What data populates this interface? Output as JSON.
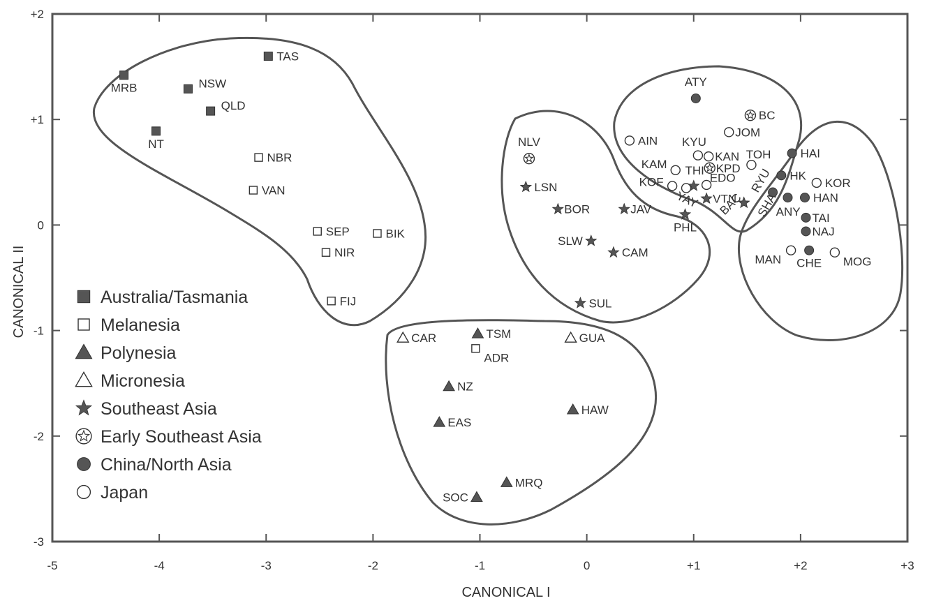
{
  "chart_data": {
    "type": "scatter",
    "title": "",
    "xlabel": "CANONICAL I",
    "ylabel": "CANONICAL II",
    "xlim": [
      -5,
      3
    ],
    "ylim": [
      -3,
      2
    ],
    "grid": false,
    "legend_position": "bottom-left",
    "x_ticks": [
      {
        "value": -5,
        "label": "-5"
      },
      {
        "value": -4,
        "label": "-4"
      },
      {
        "value": -3,
        "label": "-3"
      },
      {
        "value": -2,
        "label": "-2"
      },
      {
        "value": -1,
        "label": "-1"
      },
      {
        "value": 0,
        "label": "0"
      },
      {
        "value": 1,
        "label": "+1"
      },
      {
        "value": 2,
        "label": "+2"
      },
      {
        "value": 3,
        "label": "+3"
      }
    ],
    "y_ticks": [
      {
        "value": 2,
        "label": "+2"
      },
      {
        "value": 1,
        "label": "+1"
      },
      {
        "value": 0,
        "label": "0"
      },
      {
        "value": -1,
        "label": "-1"
      },
      {
        "value": -2,
        "label": "-2"
      },
      {
        "value": -3,
        "label": "-3"
      }
    ],
    "series": [
      {
        "name": "Australia/Tasmania",
        "marker": "square-filled",
        "points": [
          {
            "label": "TAS",
            "x": -2.98,
            "y": 1.6,
            "lpos": "right"
          },
          {
            "label": "MRB",
            "x": -4.33,
            "y": 1.42,
            "lpos": "below"
          },
          {
            "label": "NSW",
            "x": -3.73,
            "y": 1.29,
            "lpos": "right-up"
          },
          {
            "label": "QLD",
            "x": -3.52,
            "y": 1.08,
            "lpos": "right-up"
          },
          {
            "label": "NT",
            "x": -4.03,
            "y": 0.89,
            "lpos": "below"
          }
        ]
      },
      {
        "name": "Melanesia",
        "marker": "square-open",
        "points": [
          {
            "label": "NBR",
            "x": -3.07,
            "y": 0.64,
            "lpos": "right"
          },
          {
            "label": "VAN",
            "x": -3.12,
            "y": 0.33,
            "lpos": "right"
          },
          {
            "label": "SEP",
            "x": -2.52,
            "y": -0.06,
            "lpos": "right"
          },
          {
            "label": "BIK",
            "x": -1.96,
            "y": -0.08,
            "lpos": "right"
          },
          {
            "label": "NIR",
            "x": -2.44,
            "y": -0.26,
            "lpos": "right"
          },
          {
            "label": "FIJ",
            "x": -2.39,
            "y": -0.72,
            "lpos": "right"
          },
          {
            "label": "ADR",
            "x": -1.04,
            "y": -1.17,
            "lpos": "right-down"
          }
        ]
      },
      {
        "name": "Polynesia",
        "marker": "triangle-filled",
        "points": [
          {
            "label": "TSM",
            "x": -1.02,
            "y": -1.03,
            "lpos": "right"
          },
          {
            "label": "NZ",
            "x": -1.29,
            "y": -1.53,
            "lpos": "right"
          },
          {
            "label": "HAW",
            "x": -0.13,
            "y": -1.75,
            "lpos": "right"
          },
          {
            "label": "EAS",
            "x": -1.38,
            "y": -1.87,
            "lpos": "right"
          },
          {
            "label": "MRQ",
            "x": -0.75,
            "y": -2.44,
            "lpos": "right"
          },
          {
            "label": "SOC",
            "x": -1.03,
            "y": -2.58,
            "lpos": "left"
          }
        ]
      },
      {
        "name": "Micronesia",
        "marker": "triangle-open",
        "points": [
          {
            "label": "CAR",
            "x": -1.72,
            "y": -1.07,
            "lpos": "right"
          },
          {
            "label": "GUA",
            "x": -0.15,
            "y": -1.07,
            "lpos": "right"
          }
        ]
      },
      {
        "name": "Southeast Asia",
        "marker": "star-filled",
        "points": [
          {
            "label": "LSN",
            "x": -0.57,
            "y": 0.36,
            "lpos": "right"
          },
          {
            "label": "BOR",
            "x": -0.27,
            "y": 0.15,
            "lpos": "right-tight"
          },
          {
            "label": "JAV",
            "x": 0.35,
            "y": 0.15,
            "lpos": "right-tight"
          },
          {
            "label": "SLW",
            "x": 0.04,
            "y": -0.15,
            "lpos": "left"
          },
          {
            "label": "CAM",
            "x": 0.25,
            "y": -0.26,
            "lpos": "right"
          },
          {
            "label": "SUL",
            "x": -0.06,
            "y": -0.74,
            "lpos": "right"
          },
          {
            "label": "PHL",
            "x": 0.92,
            "y": 0.1,
            "lpos": "below"
          },
          {
            "label": "THI",
            "x": 1.0,
            "y": 0.37,
            "lpos": "none"
          },
          {
            "label": "VTN",
            "x": 1.12,
            "y": 0.25,
            "lpos": "right-tight"
          },
          {
            "label": "BAC",
            "x": 1.47,
            "y": 0.21,
            "lpos": "none"
          },
          {
            "label": "RYU",
            "x": 1.47,
            "y": 0.21,
            "lpos": "none"
          }
        ]
      },
      {
        "name": "Early Southeast Asia",
        "marker": "star-circle",
        "points": [
          {
            "label": "NLV",
            "x": -0.54,
            "y": 0.63,
            "lpos": "above"
          },
          {
            "label": "BC",
            "x": 1.53,
            "y": 1.04,
            "lpos": "right"
          },
          {
            "label": "KPD",
            "x": 1.15,
            "y": 0.54,
            "lpos": "right-tight"
          }
        ]
      },
      {
        "name": "China/North Asia",
        "marker": "circle-filled",
        "points": [
          {
            "label": "ATY",
            "x": 1.02,
            "y": 1.2,
            "lpos": "above"
          },
          {
            "label": "HAI",
            "x": 1.92,
            "y": 0.68,
            "lpos": "right"
          },
          {
            "label": "HK",
            "x": 1.82,
            "y": 0.47,
            "lpos": "right"
          },
          {
            "label": "HAN",
            "x": 2.04,
            "y": 0.26,
            "lpos": "right"
          },
          {
            "label": "SHA",
            "x": 1.74,
            "y": 0.31,
            "lpos": "none"
          },
          {
            "label": "ANY",
            "x": 1.88,
            "y": 0.26,
            "lpos": "none"
          },
          {
            "label": "TAI",
            "x": 2.05,
            "y": 0.07,
            "lpos": "right-tight"
          },
          {
            "label": "NAJ",
            "x": 2.05,
            "y": -0.06,
            "lpos": "right-tight"
          },
          {
            "label": "CHE",
            "x": 2.08,
            "y": -0.24,
            "lpos": "below"
          }
        ]
      },
      {
        "name": "Japan",
        "marker": "circle-open",
        "points": [
          {
            "label": "AIN",
            "x": 0.4,
            "y": 0.8,
            "lpos": "right"
          },
          {
            "label": "JOM",
            "x": 1.33,
            "y": 0.88,
            "lpos": "right-tight"
          },
          {
            "label": "KYU",
            "x": 1.04,
            "y": 0.66,
            "lpos": "none"
          },
          {
            "label": "KAN",
            "x": 1.14,
            "y": 0.65,
            "lpos": "right-tight"
          },
          {
            "label": "TOH",
            "x": 1.54,
            "y": 0.57,
            "lpos": "none"
          },
          {
            "label": "KAM",
            "x": 0.83,
            "y": 0.52,
            "lpos": "none"
          },
          {
            "label": "KOF",
            "x": 0.8,
            "y": 0.37,
            "lpos": "none"
          },
          {
            "label": "YAY",
            "x": 0.93,
            "y": 0.35,
            "lpos": "none"
          },
          {
            "label": "EDO",
            "x": 1.12,
            "y": 0.38,
            "lpos": "none"
          },
          {
            "label": "KOR",
            "x": 2.15,
            "y": 0.4,
            "lpos": "right"
          },
          {
            "label": "MAN",
            "x": 1.91,
            "y": -0.24,
            "lpos": "left-down"
          },
          {
            "label": "MOG",
            "x": 2.32,
            "y": -0.26,
            "lpos": "right-down"
          }
        ]
      }
    ],
    "free_labels": [
      {
        "label": "KYU",
        "x": 0.89,
        "y": 0.75,
        "rotate": 0,
        "size": 17
      },
      {
        "label": "TOH",
        "x": 1.49,
        "y": 0.63,
        "rotate": 0,
        "size": 15
      },
      {
        "label": "KAM",
        "x": 0.51,
        "y": 0.54,
        "rotate": 0,
        "size": 15
      },
      {
        "label": "THI",
        "x": 0.92,
        "y": 0.48,
        "rotate": 0,
        "size": 15
      },
      {
        "label": "KOF",
        "x": 0.49,
        "y": 0.37,
        "rotate": 0,
        "size": 15
      },
      {
        "label": "EDO",
        "x": 1.15,
        "y": 0.41,
        "rotate": 0,
        "size": 15
      },
      {
        "label": "YAY",
        "x": 0.83,
        "y": 0.25,
        "rotate": 25,
        "size": 15
      },
      {
        "label": "BAC",
        "x": 1.29,
        "y": 0.09,
        "rotate": -45,
        "size": 15
      },
      {
        "label": "RYU",
        "x": 1.6,
        "y": 0.3,
        "rotate": -60,
        "size": 15
      },
      {
        "label": "SHA",
        "x": 1.66,
        "y": 0.07,
        "rotate": -60,
        "size": 16
      },
      {
        "label": "ANY",
        "x": 1.77,
        "y": 0.09,
        "rotate": 0,
        "size": 17
      }
    ],
    "annotations": "Closed hand-drawn outlines enclose five regional clusters"
  }
}
